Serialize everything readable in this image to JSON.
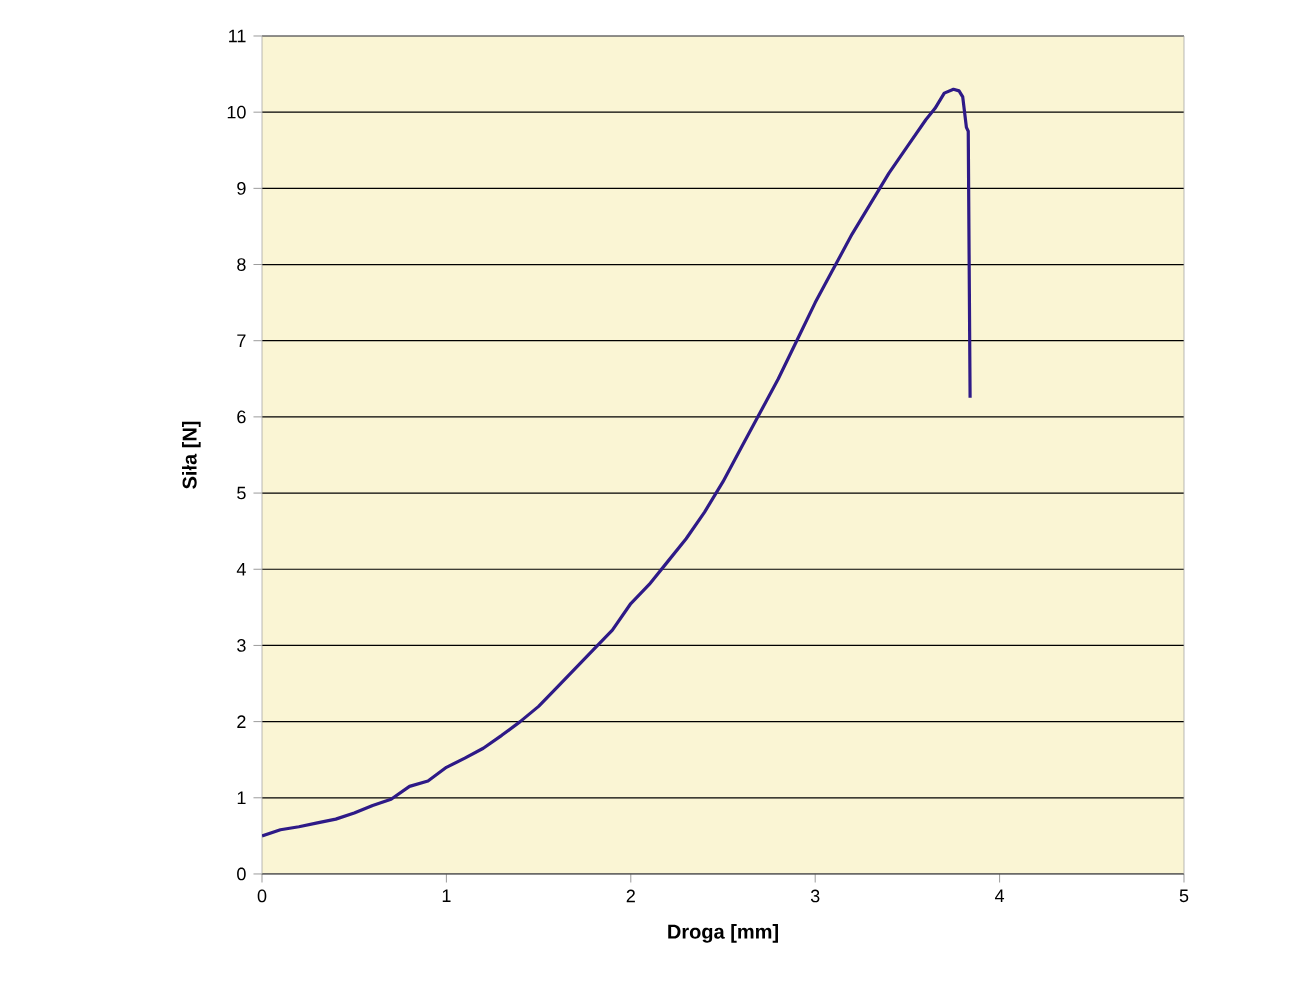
{
  "chart_data": {
    "type": "line",
    "xlabel": "Droga [mm]",
    "ylabel": "Siła [N]",
    "xlim": [
      0,
      5
    ],
    "ylim": [
      0,
      11
    ],
    "xticks": [
      0,
      1,
      2,
      3,
      4,
      5
    ],
    "yticks": [
      0,
      1,
      2,
      3,
      4,
      5,
      6,
      7,
      8,
      9,
      10,
      11
    ],
    "grid": "y",
    "marker": "none",
    "line_style": "solid",
    "series": [
      {
        "color": "#2e1a87",
        "x": [
          0,
          0.1,
          0.2,
          0.3,
          0.4,
          0.5,
          0.6,
          0.7,
          0.8,
          0.9,
          1.0,
          1.1,
          1.2,
          1.3,
          1.4,
          1.5,
          1.6,
          1.7,
          1.8,
          1.9,
          2.0,
          2.1,
          2.2,
          2.3,
          2.4,
          2.5,
          2.6,
          2.7,
          2.8,
          2.9,
          3.0,
          3.1,
          3.2,
          3.3,
          3.4,
          3.5,
          3.6,
          3.65,
          3.7,
          3.75,
          3.78,
          3.8,
          3.82,
          3.83,
          3.84
        ],
        "values": [
          0.5,
          0.58,
          0.62,
          0.67,
          0.72,
          0.8,
          0.9,
          0.98,
          1.15,
          1.22,
          1.4,
          1.52,
          1.65,
          1.82,
          2.0,
          2.2,
          2.45,
          2.7,
          2.95,
          3.2,
          3.55,
          3.8,
          4.1,
          4.4,
          4.75,
          5.15,
          5.6,
          6.05,
          6.5,
          7.0,
          7.5,
          7.95,
          8.4,
          8.8,
          9.2,
          9.55,
          9.9,
          10.05,
          10.25,
          10.3,
          10.28,
          10.2,
          9.8,
          9.75,
          6.25
        ]
      }
    ]
  }
}
